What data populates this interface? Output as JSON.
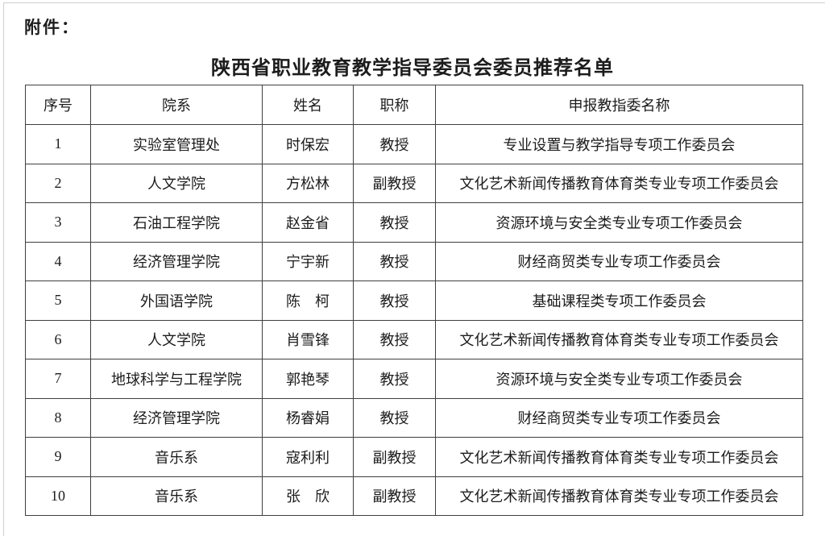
{
  "page": {
    "attachment_label": "附件：",
    "title": "陕西省职业教育教学指导委员会委员推荐名单"
  },
  "table": {
    "headers": [
      "序号",
      "院系",
      "姓名",
      "职称",
      "申报教指委名称"
    ],
    "rows": [
      [
        "1",
        "实验室管理处",
        "时保宏",
        "教授",
        "专业设置与教学指导专项工作委员会"
      ],
      [
        "2",
        "人文学院",
        "方松林",
        "副教授",
        "文化艺术新闻传播教育体育类专业专项工作委员会"
      ],
      [
        "3",
        "石油工程学院",
        "赵金省",
        "教授",
        "资源环境与安全类专业专项工作委员会"
      ],
      [
        "4",
        "经济管理学院",
        "宁宇新",
        "教授",
        "财经商贸类专业专项工作委员会"
      ],
      [
        "5",
        "外国语学院",
        "陈　柯",
        "教授",
        "基础课程类专项工作委员会"
      ],
      [
        "6",
        "人文学院",
        "肖雪锋",
        "教授",
        "文化艺术新闻传播教育体育类专业专项工作委员会"
      ],
      [
        "7",
        "地球科学与工程学院",
        "郭艳琴",
        "教授",
        "资源环境与安全类专业专项工作委员会"
      ],
      [
        "8",
        "经济管理学院",
        "杨睿娟",
        "教授",
        "财经商贸类专业专项工作委员会"
      ],
      [
        "9",
        "音乐系",
        "寇利利",
        "副教授",
        "文化艺术新闻传播教育体育类专业专项工作委员会"
      ],
      [
        "10",
        "音乐系",
        "张　欣",
        "副教授",
        "文化艺术新闻传播教育体育类专业专项工作委员会"
      ]
    ]
  },
  "colors": {
    "table_border": "#3f3f3f",
    "text": "#1c1c1c",
    "page_edge": "#cfcfcf"
  }
}
